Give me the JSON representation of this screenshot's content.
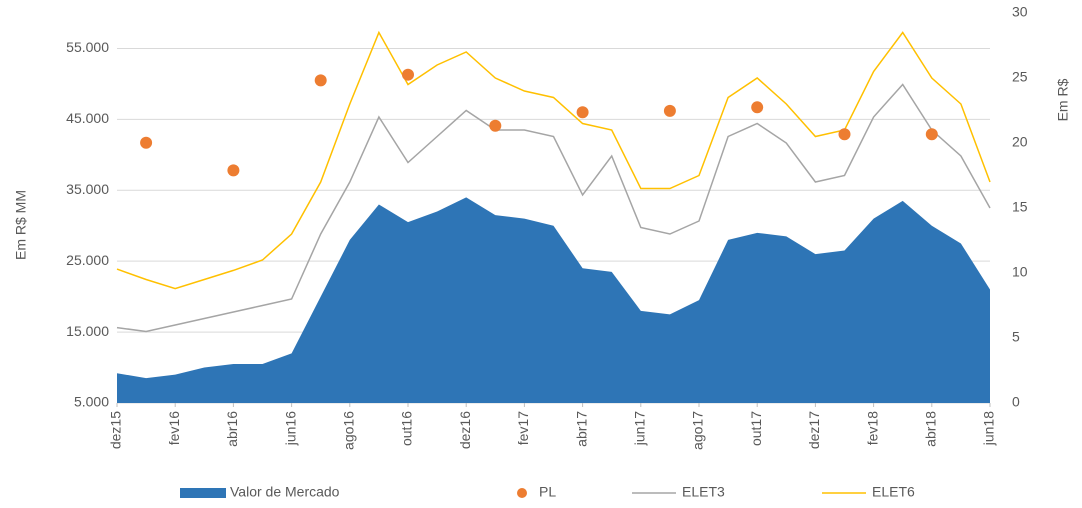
{
  "chart_data": {
    "type": "combo",
    "y_label": "Em R$ MM",
    "y2_label": "Em R$",
    "xlim": [
      0,
      30
    ],
    "xticks": [
      {
        "value": 0,
        "label": "dez15"
      },
      {
        "value": 2,
        "label": "fev16"
      },
      {
        "value": 4,
        "label": "abr16"
      },
      {
        "value": 6,
        "label": "jun16"
      },
      {
        "value": 8,
        "label": "ago16"
      },
      {
        "value": 10,
        "label": "out16"
      },
      {
        "value": 12,
        "label": "dez16"
      },
      {
        "value": 14,
        "label": "fev17"
      },
      {
        "value": 16,
        "label": "abr17"
      },
      {
        "value": 18,
        "label": "jun17"
      },
      {
        "value": 20,
        "label": "ago17"
      },
      {
        "value": 22,
        "label": "out17"
      },
      {
        "value": 24,
        "label": "dez17"
      },
      {
        "value": 26,
        "label": "fev18"
      },
      {
        "value": 28,
        "label": "abr18"
      },
      {
        "value": 30,
        "label": "jun18"
      }
    ],
    "ylim": [
      5000,
      60000
    ],
    "yticks": [
      {
        "value": 5000,
        "label": "5.000"
      },
      {
        "value": 15000,
        "label": "15.000"
      },
      {
        "value": 25000,
        "label": "25.000"
      },
      {
        "value": 35000,
        "label": "35.000"
      },
      {
        "value": 45000,
        "label": "45.000"
      },
      {
        "value": 55000,
        "label": "55.000"
      }
    ],
    "y2lim": [
      0,
      30
    ],
    "y2ticks": [
      0,
      5,
      10,
      15,
      20,
      25,
      30
    ],
    "grid": true,
    "legend": "bottom",
    "series": [
      {
        "name": "Valor de Mercado",
        "type": "area",
        "axis": "y",
        "color": "#2e75b6",
        "x": [
          0,
          1,
          2,
          3,
          4,
          5,
          6,
          7,
          8,
          9,
          10,
          11,
          12,
          13,
          14,
          15,
          16,
          17,
          18,
          19,
          20,
          21,
          22,
          23,
          24,
          25,
          26,
          27,
          28,
          29,
          30
        ],
        "values": [
          9200,
          8500,
          9000,
          10000,
          10500,
          10500,
          12000,
          20000,
          28000,
          33000,
          30500,
          32000,
          34000,
          31500,
          31000,
          30000,
          24000,
          23500,
          18000,
          17500,
          19500,
          28000,
          29000,
          28500,
          26000,
          26500,
          31000,
          33500,
          30000,
          27500,
          21000
        ]
      },
      {
        "name": "PL",
        "type": "scatter",
        "axis": "y",
        "color": "#ed7d31",
        "x": [
          1,
          4,
          7,
          10,
          13,
          16,
          19,
          22,
          25,
          28
        ],
        "values": [
          41700,
          37800,
          50500,
          51300,
          44100,
          46000,
          46200,
          46700,
          42900,
          42900
        ]
      },
      {
        "name": "ELET3",
        "type": "line",
        "axis": "y2",
        "color": "#a5a5a5",
        "x": [
          0,
          1,
          2,
          3,
          4,
          5,
          6,
          7,
          8,
          9,
          10,
          11,
          12,
          13,
          14,
          15,
          16,
          17,
          18,
          19,
          20,
          21,
          22,
          23,
          24,
          25,
          26,
          27,
          28,
          29,
          30
        ],
        "values": [
          5.8,
          5.5,
          6,
          6.5,
          7,
          7.5,
          8,
          13,
          17,
          22,
          18.5,
          20.5,
          22.5,
          21,
          21,
          20.5,
          16,
          19,
          13.5,
          13,
          14,
          20.5,
          21.5,
          20,
          17,
          17.5,
          22,
          24.5,
          21,
          19,
          15
        ]
      },
      {
        "name": "ELET6",
        "type": "line",
        "axis": "y2",
        "color": "#ffc000",
        "x": [
          0,
          1,
          2,
          3,
          4,
          5,
          6,
          7,
          8,
          9,
          10,
          11,
          12,
          13,
          14,
          15,
          16,
          17,
          18,
          19,
          20,
          21,
          22,
          23,
          24,
          25,
          26,
          27,
          28,
          29,
          30
        ],
        "values": [
          10.3,
          9.5,
          8.8,
          9.5,
          10.2,
          11,
          13,
          17,
          23,
          28.5,
          24.5,
          26,
          27,
          25,
          24,
          23.5,
          21.5,
          21,
          16.5,
          16.5,
          17.5,
          23.5,
          25,
          23,
          20.5,
          21,
          25.5,
          28.5,
          25,
          23,
          17
        ]
      }
    ]
  }
}
